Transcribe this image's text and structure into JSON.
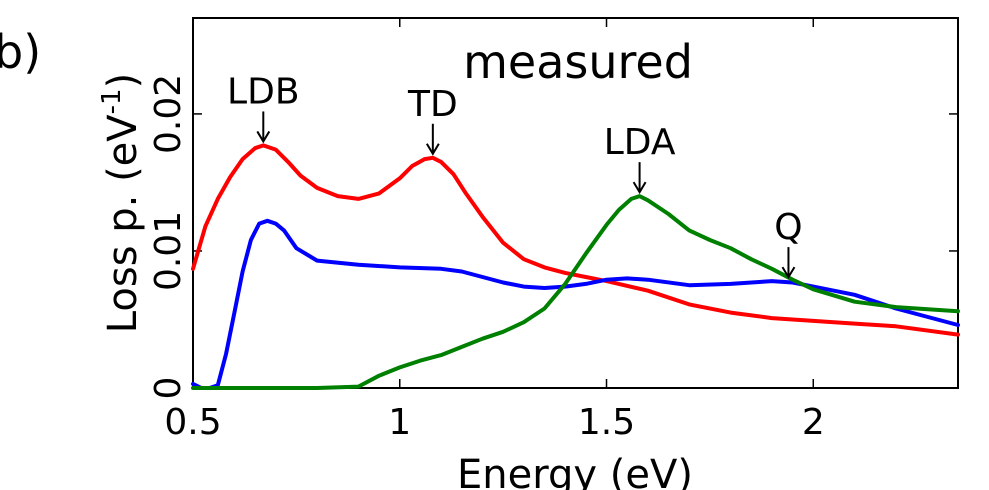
{
  "panel_label": "b)",
  "chart_data": {
    "type": "line",
    "title": "measured",
    "xlabel": "Energy (eV)",
    "ylabel": "Loss p. (eV",
    "ylabel_sup": "-1",
    "ylabel_close": ")",
    "xlim": [
      0.5,
      2.35
    ],
    "ylim": [
      0,
      0.027
    ],
    "xticks": [
      0.5,
      1,
      1.5,
      2
    ],
    "xtick_labels": [
      "0.5",
      "1",
      "1.5",
      "2"
    ],
    "yticks": [
      0,
      0.01,
      0.02
    ],
    "ytick_labels": [
      "0",
      "0.01",
      "0.02"
    ],
    "grid": false,
    "legend": "none",
    "series": [
      {
        "color": "#ff0000",
        "x": [
          0.5,
          0.53,
          0.56,
          0.59,
          0.62,
          0.65,
          0.67,
          0.7,
          0.73,
          0.76,
          0.8,
          0.85,
          0.9,
          0.95,
          1.0,
          1.03,
          1.06,
          1.08,
          1.1,
          1.13,
          1.16,
          1.2,
          1.25,
          1.3,
          1.35,
          1.4,
          1.45,
          1.5,
          1.6,
          1.7,
          1.8,
          1.9,
          2.0,
          2.1,
          2.2,
          2.35
        ],
        "y": [
          0.0087,
          0.0118,
          0.0138,
          0.0154,
          0.0167,
          0.0175,
          0.0177,
          0.0174,
          0.0165,
          0.0155,
          0.0146,
          0.014,
          0.0138,
          0.0142,
          0.0153,
          0.0162,
          0.0167,
          0.0168,
          0.0165,
          0.0156,
          0.0142,
          0.0125,
          0.0106,
          0.0094,
          0.0088,
          0.0084,
          0.0081,
          0.0078,
          0.0071,
          0.0061,
          0.0055,
          0.0051,
          0.0049,
          0.0047,
          0.0045,
          0.0039
        ]
      },
      {
        "color": "#0000ff",
        "x": [
          0.5,
          0.52,
          0.54,
          0.56,
          0.58,
          0.6,
          0.62,
          0.64,
          0.66,
          0.68,
          0.7,
          0.72,
          0.75,
          0.8,
          0.9,
          1.0,
          1.1,
          1.15,
          1.2,
          1.25,
          1.3,
          1.35,
          1.4,
          1.45,
          1.5,
          1.55,
          1.6,
          1.7,
          1.8,
          1.9,
          1.95,
          2.0,
          2.1,
          2.2,
          2.35
        ],
        "y": [
          0.0003,
          0.0,
          0.0,
          0.0002,
          0.0025,
          0.0055,
          0.0085,
          0.0108,
          0.012,
          0.0122,
          0.012,
          0.0115,
          0.0102,
          0.0093,
          0.009,
          0.0088,
          0.0087,
          0.0085,
          0.0081,
          0.0077,
          0.0074,
          0.0073,
          0.0074,
          0.0076,
          0.0079,
          0.008,
          0.0079,
          0.0075,
          0.0076,
          0.0078,
          0.0077,
          0.0074,
          0.0068,
          0.0058,
          0.0046
        ]
      },
      {
        "color": "#008000",
        "x": [
          0.5,
          0.6,
          0.7,
          0.8,
          0.9,
          0.95,
          1.0,
          1.05,
          1.1,
          1.15,
          1.2,
          1.25,
          1.3,
          1.35,
          1.4,
          1.45,
          1.5,
          1.53,
          1.56,
          1.58,
          1.6,
          1.65,
          1.7,
          1.75,
          1.8,
          1.85,
          1.9,
          1.95,
          2.0,
          2.1,
          2.2,
          2.35
        ],
        "y": [
          0.0,
          0.0,
          0.0,
          0.0,
          0.0001,
          0.0009,
          0.0015,
          0.002,
          0.0024,
          0.003,
          0.0036,
          0.0041,
          0.0048,
          0.0058,
          0.0076,
          0.0098,
          0.0119,
          0.013,
          0.0138,
          0.014,
          0.0137,
          0.0127,
          0.0115,
          0.0108,
          0.0102,
          0.0094,
          0.0087,
          0.0079,
          0.0072,
          0.0063,
          0.0059,
          0.0056
        ]
      }
    ],
    "annotations": [
      {
        "label": "LDB",
        "x": 0.67,
        "y": 0.0177
      },
      {
        "label": "TD",
        "x": 1.08,
        "y": 0.0168
      },
      {
        "label": "LDA",
        "x": 1.58,
        "y": 0.014
      },
      {
        "label": "Q",
        "x": 1.94,
        "y": 0.0078
      }
    ]
  }
}
